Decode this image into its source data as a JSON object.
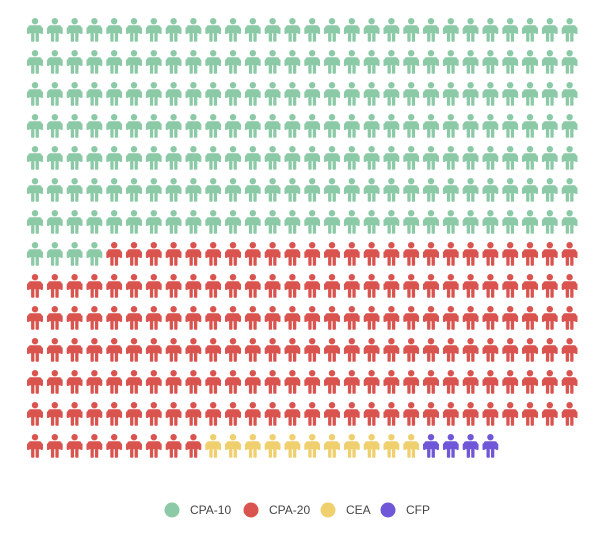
{
  "chart_data": {
    "type": "pictogram",
    "layout": {
      "rows": 14,
      "columns": 28,
      "fill_order": "row-major-top-left"
    },
    "series": [
      {
        "name": "CPA-10",
        "value": 200,
        "color": "#8ccaa7"
      },
      {
        "name": "CPA-20",
        "value": 173,
        "color": "#d9534f"
      },
      {
        "name": "CEA",
        "value": 11,
        "color": "#efcf6e"
      },
      {
        "name": "CFP",
        "value": 4,
        "color": "#6f57d8"
      }
    ],
    "total_icons": 388,
    "legend": {
      "position": "bottom",
      "marker": "circle"
    },
    "icon": "person-icon"
  }
}
